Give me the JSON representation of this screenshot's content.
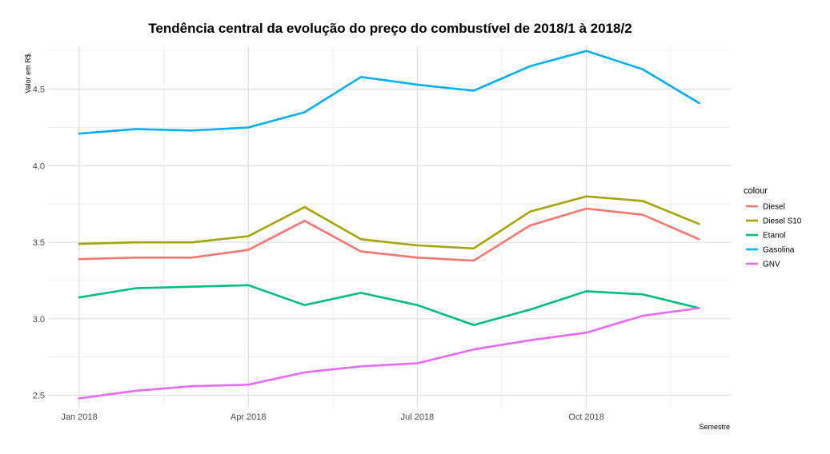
{
  "chart_data": {
    "type": "line",
    "title": "Tendência central da evolução do preço do combustível de 2018/1 à 2018/2",
    "xlabel": "Semestre",
    "ylabel": "Valor em R$",
    "x": [
      "2018-01",
      "2018-02",
      "2018-03",
      "2018-04",
      "2018-05",
      "2018-06",
      "2018-07",
      "2018-08",
      "2018-09",
      "2018-10",
      "2018-11",
      "2018-12"
    ],
    "x_ticks": [
      {
        "value": "2018-01",
        "label": "Jan 2018"
      },
      {
        "value": "2018-04",
        "label": "Apr 2018"
      },
      {
        "value": "2018-07",
        "label": "Jul 2018"
      },
      {
        "value": "2018-10",
        "label": "Oct 2018"
      }
    ],
    "y_ticks": [
      "2.5",
      "3.0",
      "3.5",
      "4.0",
      "4.5"
    ],
    "ylim": [
      2.42,
      4.78
    ],
    "grid": true,
    "legend_title": "colour",
    "legend_position": "right",
    "series": [
      {
        "name": "Diesel",
        "color": "#F8766D",
        "values": [
          3.39,
          3.4,
          3.4,
          3.45,
          3.64,
          3.44,
          3.4,
          3.38,
          3.61,
          3.72,
          3.68,
          3.52
        ]
      },
      {
        "name": "Diesel S10",
        "color": "#A3A500",
        "values": [
          3.49,
          3.5,
          3.5,
          3.54,
          3.73,
          3.52,
          3.48,
          3.46,
          3.7,
          3.8,
          3.77,
          3.62
        ]
      },
      {
        "name": "Etanol",
        "color": "#00BF7D",
        "values": [
          3.14,
          3.2,
          3.21,
          3.22,
          3.09,
          3.17,
          3.09,
          2.96,
          3.06,
          3.18,
          3.16,
          3.07
        ]
      },
      {
        "name": "Gasolina",
        "color": "#00B0F6",
        "values": [
          4.21,
          4.24,
          4.23,
          4.25,
          4.35,
          4.58,
          4.53,
          4.49,
          4.65,
          4.75,
          4.63,
          4.41
        ]
      },
      {
        "name": "GNV",
        "color": "#E76BF3",
        "values": [
          2.48,
          2.53,
          2.56,
          2.57,
          2.65,
          2.69,
          2.71,
          2.8,
          2.86,
          2.91,
          3.02,
          3.07
        ]
      }
    ]
  }
}
